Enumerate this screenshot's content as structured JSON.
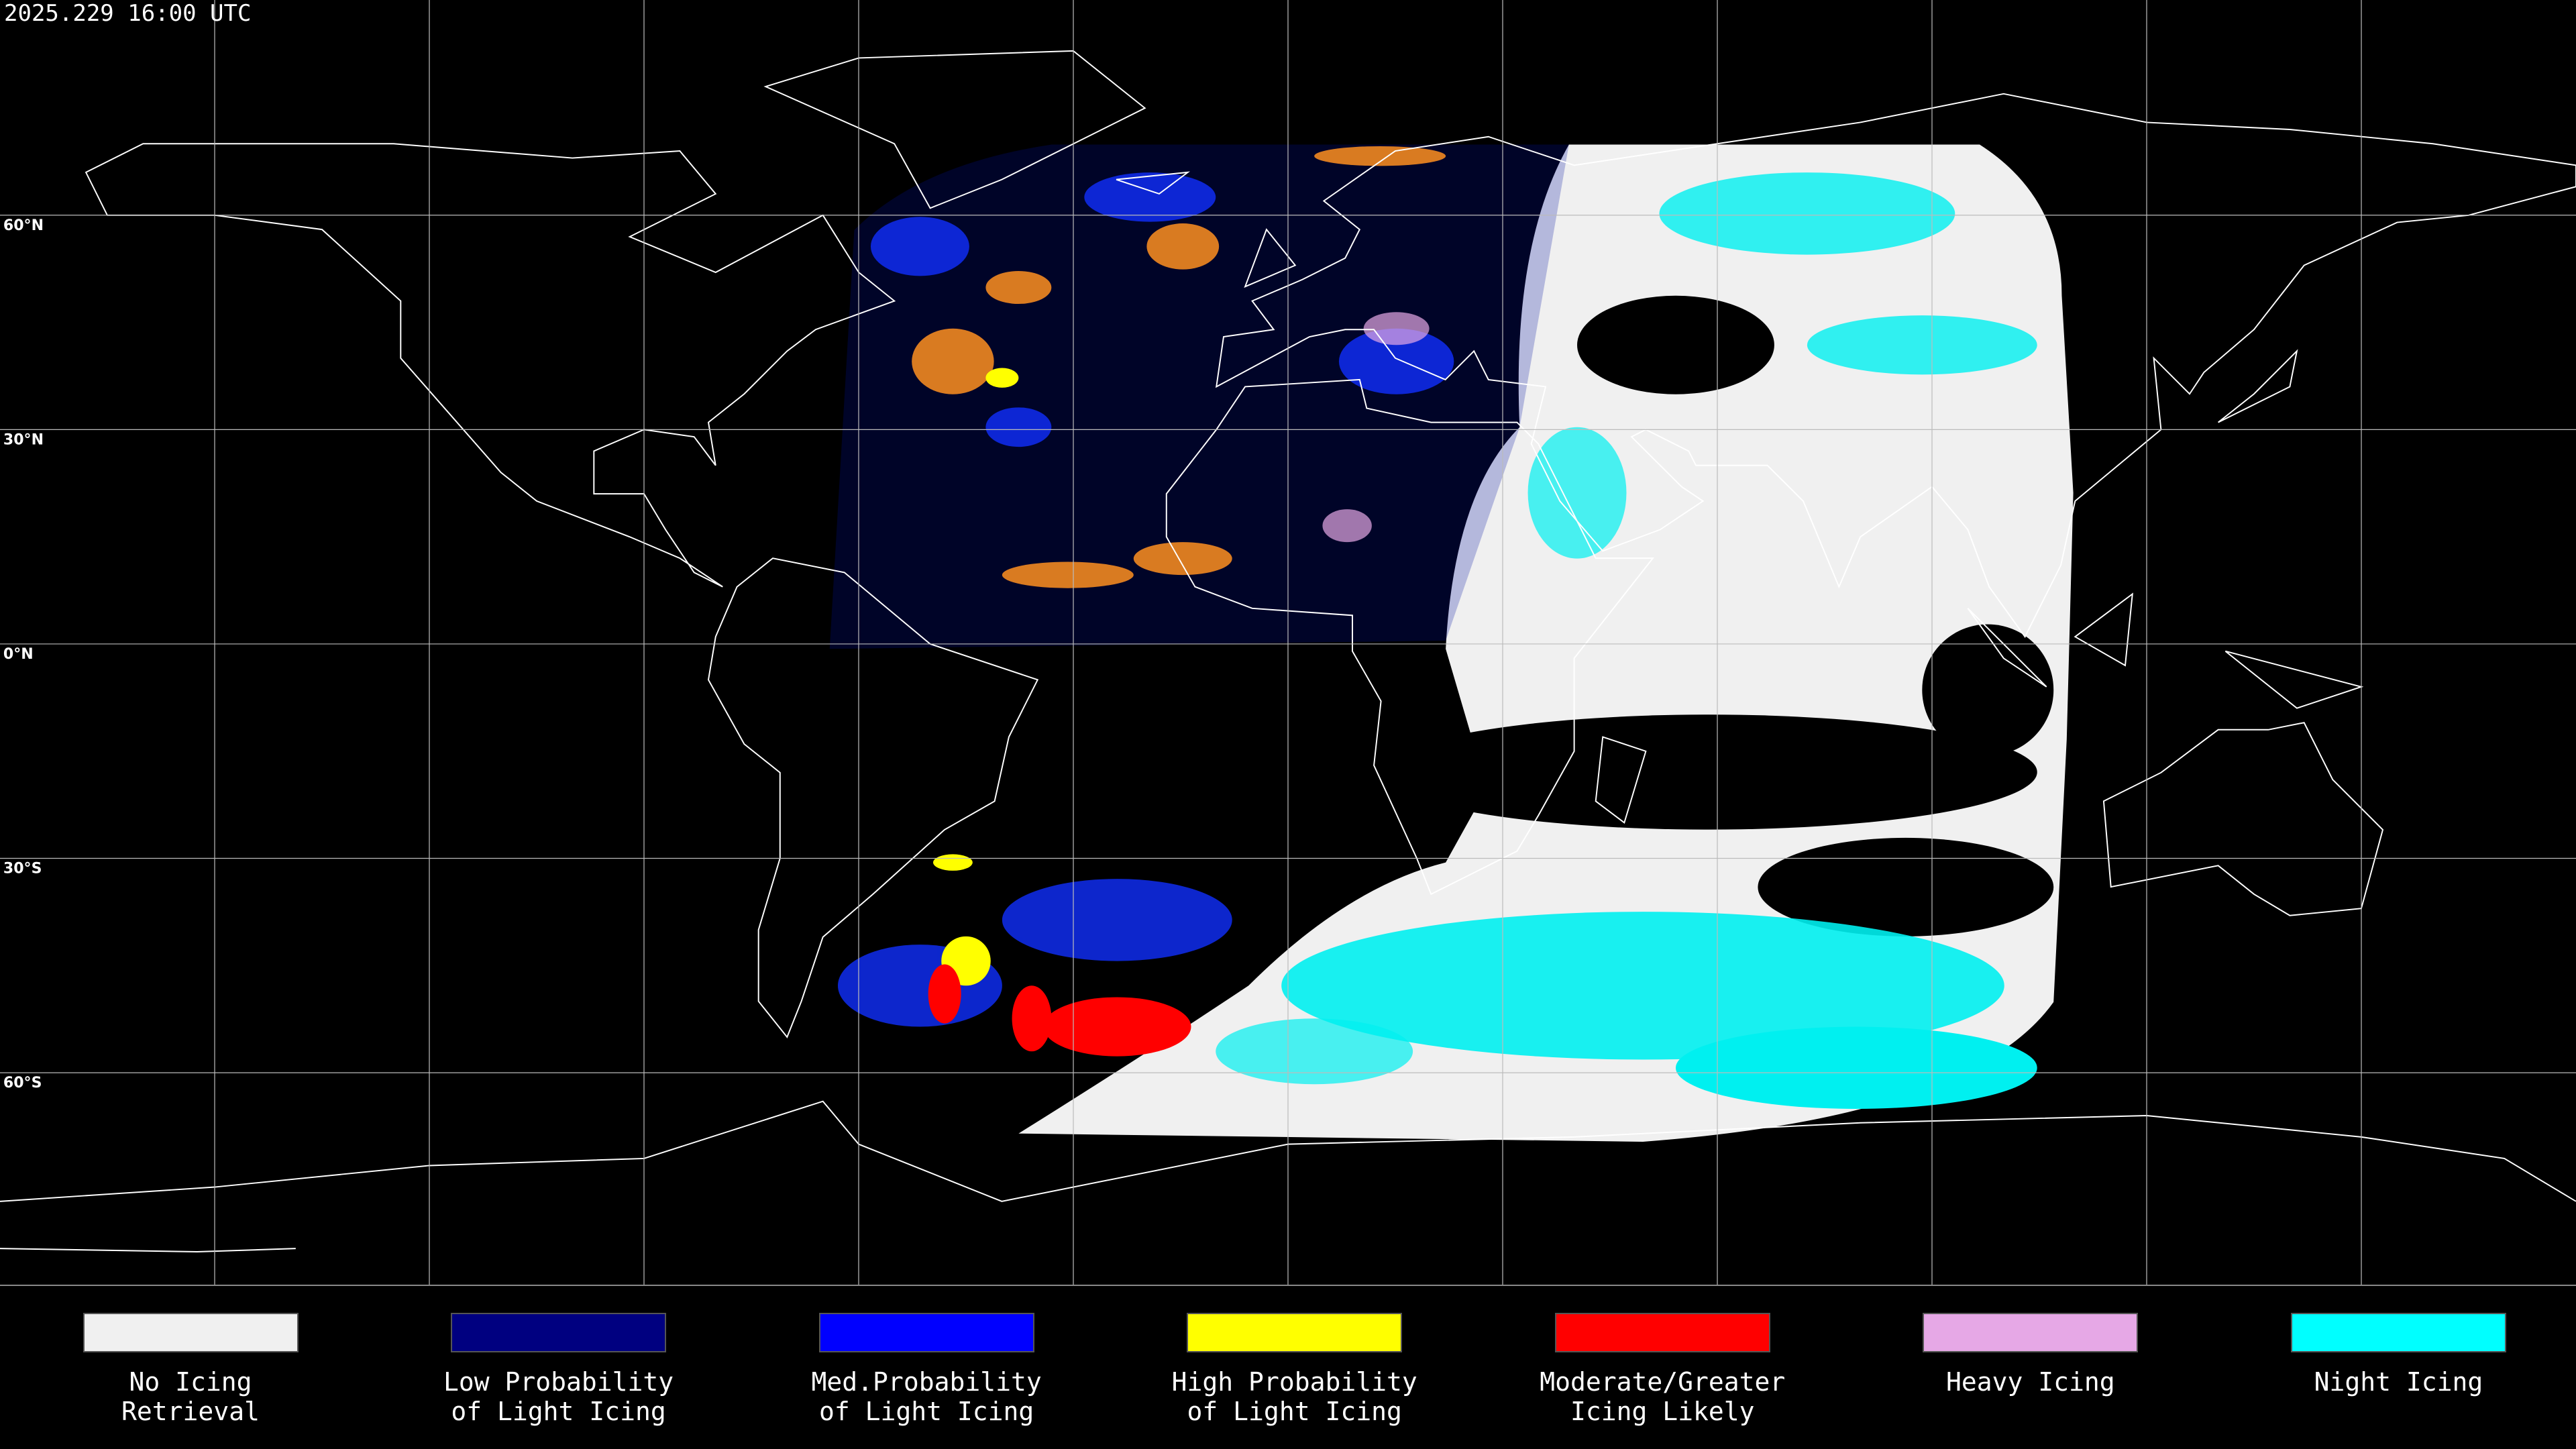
{
  "header": {
    "timestamp": "2025.229 16:00 UTC"
  },
  "map": {
    "latitude_labels": [
      "60°N",
      "30°N",
      "0°N",
      "30°S",
      "60°S"
    ]
  },
  "legend": {
    "items": [
      {
        "label": [
          "No Icing",
          "Retrieval"
        ],
        "color": "#f0f0f0"
      },
      {
        "label": [
          "Low Probability",
          "of Light Icing"
        ],
        "color": "#000080"
      },
      {
        "label": [
          "Med.Probability",
          "of Light Icing"
        ],
        "color": "#0000ff"
      },
      {
        "label": [
          "High Probability",
          "of Light Icing"
        ],
        "color": "#ffff00"
      },
      {
        "label": [
          "Moderate/Greater",
          "Icing Likely"
        ],
        "color": "#ff0000"
      },
      {
        "label": [
          "Heavy Icing"
        ],
        "color": "#e6a8e6"
      },
      {
        "label": [
          "Night Icing"
        ],
        "color": "#00ffff"
      }
    ]
  }
}
